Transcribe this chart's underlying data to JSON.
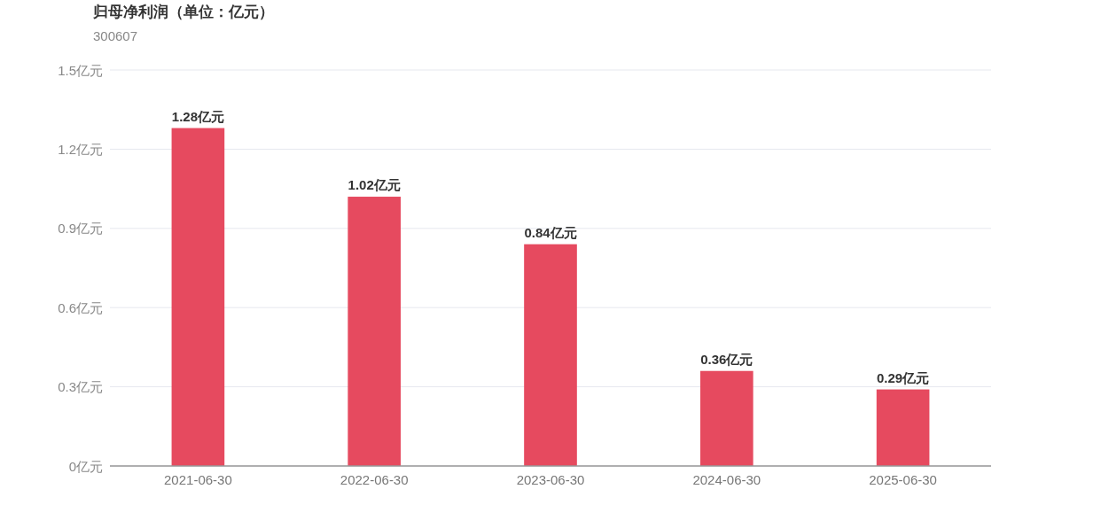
{
  "chart_data": {
    "type": "bar",
    "title": "归母净利润（单位：亿元）",
    "subtitle": "300607",
    "categories": [
      "2021-06-30",
      "2022-06-30",
      "2023-06-30",
      "2024-06-30",
      "2025-06-30"
    ],
    "values": [
      1.28,
      1.02,
      0.84,
      0.36,
      0.29
    ],
    "color": "#e64a5f",
    "value_labels": [
      "1.28亿元",
      "1.02亿元",
      "0.84亿元",
      "0.36亿元",
      "0.29亿元"
    ],
    "ylim": [
      0,
      1.5
    ],
    "yticks": [
      {
        "value": 0,
        "label": "0亿元"
      },
      {
        "value": 0.3,
        "label": "0.3亿元"
      },
      {
        "value": 0.6,
        "label": "0.6亿元"
      },
      {
        "value": 0.9,
        "label": "0.9亿元"
      },
      {
        "value": 1.2,
        "label": "1.2亿元"
      },
      {
        "value": 1.5,
        "label": "1.5亿元"
      }
    ],
    "grid": "y"
  }
}
